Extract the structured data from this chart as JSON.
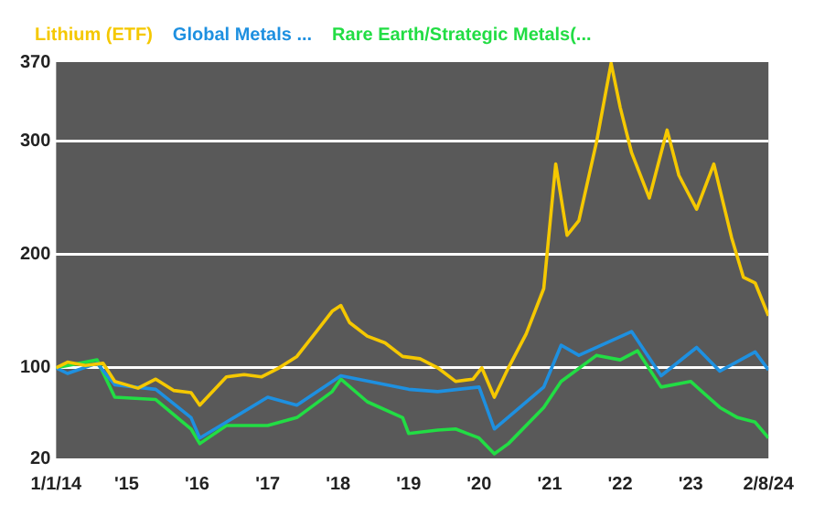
{
  "chart_data": {
    "type": "line",
    "legend": "top",
    "grid": "y",
    "xlim": [
      "2014-01-01",
      "2024-02-08"
    ],
    "ylim": [
      20,
      370
    ],
    "yticks": [
      20,
      100,
      200,
      300,
      370
    ],
    "xticks": [
      {
        "value": "2014-01-01",
        "label": "1/1/14"
      },
      {
        "value": "2015-01-01",
        "label": "'15"
      },
      {
        "value": "2016-01-01",
        "label": "'16"
      },
      {
        "value": "2017-01-01",
        "label": "'17"
      },
      {
        "value": "2018-01-01",
        "label": "'18"
      },
      {
        "value": "2019-01-01",
        "label": "'19"
      },
      {
        "value": "2020-01-01",
        "label": "'20"
      },
      {
        "value": "2021-01-01",
        "label": "'21"
      },
      {
        "value": "2022-01-01",
        "label": "'22"
      },
      {
        "value": "2023-01-01",
        "label": "'23"
      },
      {
        "value": "2024-01-01",
        "label": null
      },
      {
        "value": "2024-02-08",
        "label": "2/8/24"
      }
    ],
    "series": [
      {
        "name": "Lithium (ETF)",
        "color": "#f5c800",
        "x": [
          "2014-01-01",
          "2014-03-01",
          "2014-06-01",
          "2014-09-01",
          "2014-11-01",
          "2015-03-01",
          "2015-06-01",
          "2015-09-01",
          "2015-12-01",
          "2016-01-15",
          "2016-06-01",
          "2016-09-01",
          "2016-12-01",
          "2017-03-01",
          "2017-06-01",
          "2017-09-01",
          "2017-12-01",
          "2018-01-15",
          "2018-03-01",
          "2018-06-01",
          "2018-09-01",
          "2018-12-01",
          "2019-03-01",
          "2019-06-01",
          "2019-09-01",
          "2019-12-01",
          "2020-01-15",
          "2020-03-20",
          "2020-06-01",
          "2020-09-01",
          "2020-12-01",
          "2021-02-01",
          "2021-04-01",
          "2021-06-01",
          "2021-09-01",
          "2021-11-15",
          "2022-01-01",
          "2022-03-01",
          "2022-06-01",
          "2022-09-01",
          "2022-11-01",
          "2023-02-01",
          "2023-05-01",
          "2023-08-01",
          "2023-10-01",
          "2023-12-01",
          "2024-02-08"
        ],
        "values": [
          100,
          105,
          102,
          104,
          88,
          82,
          90,
          80,
          78,
          67,
          92,
          94,
          92,
          100,
          110,
          130,
          150,
          155,
          140,
          128,
          122,
          110,
          108,
          100,
          88,
          90,
          100,
          74,
          100,
          130,
          170,
          280,
          217,
          230,
          300,
          369,
          330,
          290,
          250,
          310,
          270,
          240,
          280,
          215,
          180,
          175,
          146
        ]
      },
      {
        "name": "Global Metals ...",
        "color": "#1e90e0",
        "x": [
          "2014-01-01",
          "2014-03-01",
          "2014-08-01",
          "2014-11-01",
          "2015-06-01",
          "2015-12-01",
          "2016-01-15",
          "2016-06-01",
          "2017-01-01",
          "2017-06-01",
          "2018-01-15",
          "2019-01-01",
          "2019-06-01",
          "2020-01-01",
          "2020-03-20",
          "2020-12-01",
          "2021-03-01",
          "2021-06-01",
          "2022-03-01",
          "2022-08-01",
          "2023-02-01",
          "2023-06-01",
          "2023-12-01",
          "2024-02-08"
        ],
        "values": [
          100,
          95,
          104,
          85,
          81,
          56,
          38,
          52,
          74,
          67,
          93,
          81,
          79,
          83,
          46,
          83,
          120,
          111,
          132,
          93,
          118,
          97,
          114,
          98
        ]
      },
      {
        "name": "Rare Earth/Strategic Metals(...",
        "color": "#22dd44",
        "x": [
          "2014-01-01",
          "2014-08-01",
          "2014-11-01",
          "2015-06-01",
          "2015-12-01",
          "2016-01-15",
          "2016-06-01",
          "2017-01-01",
          "2017-06-01",
          "2017-12-01",
          "2018-01-15",
          "2018-06-01",
          "2018-12-01",
          "2019-01-01",
          "2019-06-01",
          "2019-09-01",
          "2020-01-01",
          "2020-03-20",
          "2020-06-01",
          "2020-12-01",
          "2021-03-01",
          "2021-09-01",
          "2022-01-01",
          "2022-04-01",
          "2022-08-01",
          "2023-01-01",
          "2023-06-01",
          "2023-09-01",
          "2023-12-01",
          "2024-02-08"
        ],
        "values": [
          100,
          107,
          74,
          72,
          46,
          33,
          49,
          49,
          56,
          79,
          90,
          70,
          56,
          42,
          45,
          46,
          38,
          24,
          33,
          65,
          88,
          111,
          107,
          115,
          83,
          88,
          65,
          56,
          52,
          38
        ]
      }
    ]
  }
}
